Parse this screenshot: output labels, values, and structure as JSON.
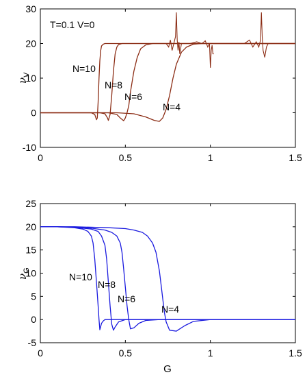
{
  "chart_data": [
    {
      "type": "line",
      "title": "",
      "annotation": "T=0.1 V=0",
      "xlabel": "",
      "ylabel": "ν",
      "ylabel_sub": "V",
      "xlim": [
        0,
        1.5
      ],
      "ylim": [
        -10,
        30
      ],
      "xticks": [
        0,
        0.5,
        1,
        1.5
      ],
      "yticks": [
        -10,
        0,
        10,
        20,
        30
      ],
      "xtick_labels": [
        "0",
        "0.5",
        "1",
        "1.5"
      ],
      "ytick_labels": [
        "-10",
        "0",
        "10",
        "20",
        "30"
      ],
      "grid": false,
      "color": "#8b2c14",
      "series": [
        {
          "name": "N=10",
          "x": [
            0,
            0.3,
            0.32,
            0.33,
            0.335,
            0.34,
            0.345,
            0.35,
            0.355,
            0.36,
            0.37,
            0.38,
            0.4,
            0.5,
            1.5
          ],
          "y": [
            0,
            0,
            -0.5,
            -2,
            -1.5,
            3,
            10,
            15,
            18,
            19.3,
            19.8,
            20,
            20,
            20,
            20
          ]
        },
        {
          "name": "N=8",
          "x": [
            0,
            0.35,
            0.38,
            0.395,
            0.4,
            0.41,
            0.42,
            0.43,
            0.44,
            0.45,
            0.46,
            0.48,
            0.5,
            1.5
          ],
          "y": [
            0,
            0,
            -0.3,
            -1.5,
            -2.2,
            -0.5,
            5,
            12,
            17,
            19,
            19.7,
            20,
            20,
            20
          ]
        },
        {
          "name": "N=6",
          "x": [
            0,
            0.4,
            0.45,
            0.47,
            0.49,
            0.5,
            0.51,
            0.52,
            0.53,
            0.55,
            0.57,
            0.59,
            0.62,
            0.66,
            0.7,
            1.5
          ],
          "y": [
            0,
            0,
            -0.5,
            -1.5,
            -2.3,
            -1.5,
            0,
            2,
            6,
            12,
            16,
            18.5,
            19.6,
            20,
            20,
            20
          ]
        },
        {
          "name": "N=4",
          "x": [
            0,
            0.45,
            0.55,
            0.62,
            0.67,
            0.7,
            0.72,
            0.74,
            0.76,
            0.78,
            0.8,
            0.83,
            0.86,
            0.9,
            0.95,
            1.0,
            1.5
          ],
          "y": [
            0,
            0,
            -0.3,
            -1.2,
            -2.2,
            -2.5,
            -1.5,
            1,
            5,
            10,
            14,
            17.5,
            19,
            19.8,
            20,
            20,
            20
          ]
        }
      ],
      "noise_spikes": [
        {
          "x": [
            0.74,
            0.755,
            0.765,
            0.775,
            0.785,
            0.795,
            0.8,
            0.805,
            0.81,
            0.815,
            0.82,
            0.83,
            0.84
          ],
          "y": [
            20,
            19,
            21,
            18,
            20,
            22,
            29,
            21,
            18,
            20.5,
            17,
            20,
            20
          ]
        },
        {
          "x": [
            0.88,
            0.92,
            0.95,
            0.97,
            0.985,
            0.995,
            1.0,
            1.005,
            1.01,
            1.015,
            1.02
          ],
          "y": [
            20,
            20.5,
            20,
            20.8,
            19,
            20,
            13,
            18,
            19.5,
            17,
            17
          ]
        },
        {
          "x": [
            1.2,
            1.23,
            1.25,
            1.27,
            1.285,
            1.295,
            1.3,
            1.305,
            1.31,
            1.315,
            1.32,
            1.33,
            1.34
          ],
          "y": [
            20,
            21,
            19,
            20.5,
            19,
            21,
            29,
            22,
            18,
            17,
            16,
            19,
            20
          ]
        }
      ]
    },
    {
      "type": "line",
      "title": "",
      "xlabel": "G",
      "ylabel": "ν",
      "ylabel_sub": "G",
      "xlim": [
        0,
        1.5
      ],
      "ylim": [
        -5,
        25
      ],
      "xticks": [
        0,
        0.5,
        1,
        1.5
      ],
      "yticks": [
        -5,
        0,
        5,
        10,
        15,
        20,
        25
      ],
      "xtick_labels": [
        "0",
        "0.5",
        "1",
        "1.5"
      ],
      "ytick_labels": [
        "-5",
        "0",
        "5",
        "10",
        "15",
        "20",
        "25"
      ],
      "grid": false,
      "color": "#1a1adf",
      "series": [
        {
          "name": "N=10",
          "x": [
            0,
            0.1,
            0.2,
            0.25,
            0.28,
            0.3,
            0.31,
            0.32,
            0.33,
            0.34,
            0.345,
            0.35,
            0.355,
            0.36,
            0.37,
            0.38,
            0.4,
            0.5,
            1.5
          ],
          "y": [
            20,
            20,
            19.8,
            19.5,
            19,
            18,
            16.5,
            13,
            8,
            3,
            0,
            -2.2,
            -1.5,
            -0.8,
            -0.3,
            0,
            0,
            0,
            0
          ]
        },
        {
          "name": "N=8",
          "x": [
            0,
            0.1,
            0.2,
            0.3,
            0.34,
            0.36,
            0.38,
            0.39,
            0.4,
            0.41,
            0.42,
            0.43,
            0.44,
            0.46,
            0.5,
            1.5
          ],
          "y": [
            20,
            20,
            19.9,
            19.5,
            19,
            18,
            16,
            13,
            8,
            3,
            -1,
            -2.3,
            -1.6,
            -0.5,
            0,
            0
          ]
        },
        {
          "name": "N=6",
          "x": [
            0,
            0.1,
            0.2,
            0.3,
            0.38,
            0.42,
            0.45,
            0.47,
            0.48,
            0.49,
            0.5,
            0.51,
            0.52,
            0.53,
            0.55,
            0.58,
            0.62,
            0.7,
            1.5
          ],
          "y": [
            20,
            20,
            19.9,
            19.7,
            19.3,
            18.8,
            18,
            16.5,
            14.5,
            11,
            7,
            3,
            0,
            -2,
            -1.8,
            -0.8,
            -0.2,
            0,
            0
          ]
        },
        {
          "name": "N=4",
          "x": [
            0,
            0.2,
            0.4,
            0.5,
            0.55,
            0.6,
            0.63,
            0.66,
            0.68,
            0.7,
            0.71,
            0.72,
            0.73,
            0.74,
            0.76,
            0.8,
            0.85,
            0.9,
            1.0,
            1.5
          ],
          "y": [
            20,
            20,
            19.8,
            19.6,
            19.3,
            18.8,
            18,
            16.5,
            14.5,
            10.5,
            7.5,
            4.5,
            1.5,
            -0.5,
            -2.3,
            -2.5,
            -1.3,
            -0.4,
            0,
            0
          ]
        }
      ]
    }
  ]
}
